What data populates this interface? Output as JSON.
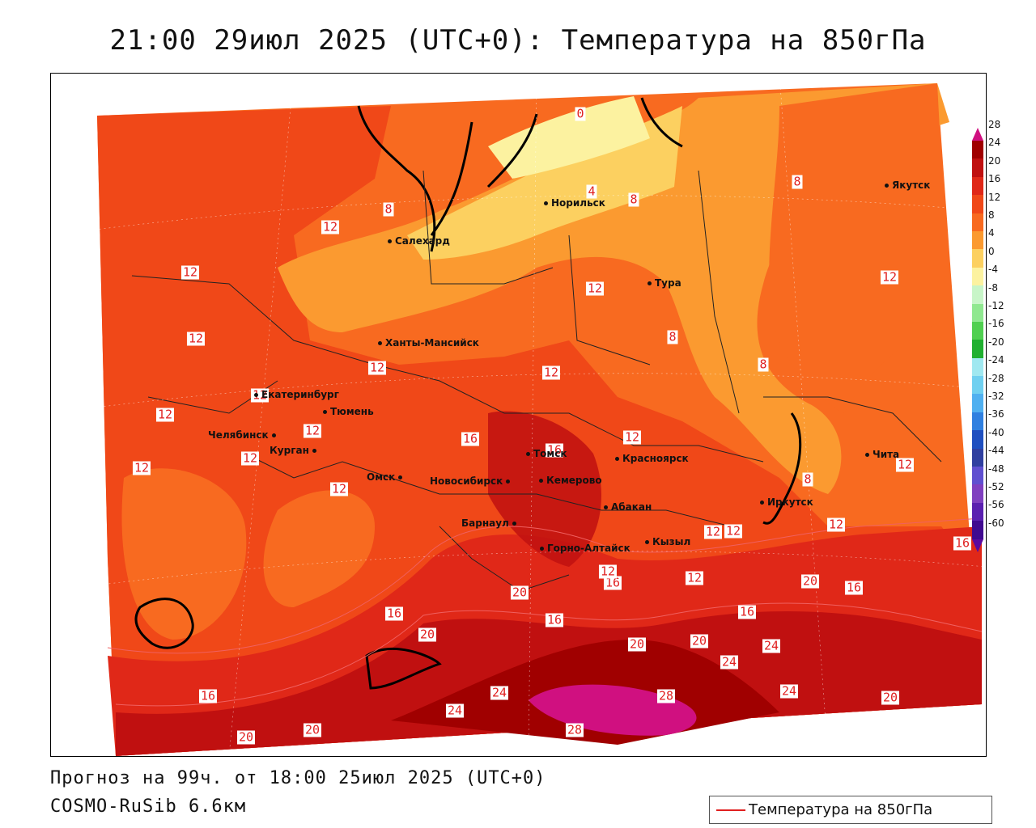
{
  "title": "21:00 29июл 2025 (UTC+0): Температура на 850гПа",
  "footer": {
    "forecast": "Прогноз на 99ч. от 18:00 25июл 2025 (UTC+0)",
    "model": "COSMO-RuSib 6.6км"
  },
  "legend": {
    "label": "Температура на 850гПа",
    "color": "#e02020"
  },
  "colorbar": {
    "labels": [
      "28",
      "24",
      "20",
      "16",
      "12",
      "8",
      "4",
      "0",
      "-4",
      "-8",
      "-12",
      "-16",
      "-20",
      "-24",
      "-28",
      "-32",
      "-36",
      "-40",
      "-44",
      "-48",
      "-52",
      "-56",
      "-60"
    ],
    "colors": [
      "#d01080",
      "#a00000",
      "#c01010",
      "#e02818",
      "#f04818",
      "#f86a20",
      "#fb9a30",
      "#fcd060",
      "#fcf2a0",
      "#c8f5c8",
      "#90e890",
      "#50d050",
      "#20b030",
      "#a0e8f0",
      "#70d0f0",
      "#50b0f0",
      "#3080e0",
      "#2050c0",
      "#3040a0",
      "#6050d0",
      "#8040c0",
      "#5a20b0",
      "#400a90",
      "#5a0aa0"
    ]
  },
  "cities": [
    {
      "name": "Якутск"
    },
    {
      "name": "Норильск"
    },
    {
      "name": "Салехард"
    },
    {
      "name": "Тура"
    },
    {
      "name": "Ханты-Мансийск"
    },
    {
      "name": "Екатеринбург"
    },
    {
      "name": "Тюмень"
    },
    {
      "name": "Челябинск"
    },
    {
      "name": "Курган"
    },
    {
      "name": "Омск"
    },
    {
      "name": "Новосибирск"
    },
    {
      "name": "Томск"
    },
    {
      "name": "Кемерово"
    },
    {
      "name": "Красноярск"
    },
    {
      "name": "Абакан"
    },
    {
      "name": "Барнаул"
    },
    {
      "name": "Горно-Алтайск"
    },
    {
      "name": "Кызыл"
    },
    {
      "name": "Иркутск"
    },
    {
      "name": "Чита"
    }
  ],
  "isotherm_labels": [
    "0",
    "4",
    "8",
    "8",
    "8",
    "12",
    "12",
    "12",
    "12",
    "12",
    "12",
    "12",
    "12",
    "12",
    "12",
    "12",
    "12",
    "12",
    "12",
    "16",
    "16",
    "16",
    "16",
    "16",
    "16",
    "16",
    "16",
    "20",
    "20",
    "20",
    "20",
    "20",
    "20",
    "20",
    "20",
    "24",
    "24",
    "24",
    "24",
    "24",
    "28",
    "28",
    "12",
    "8",
    "8",
    "8",
    "12",
    "12",
    "12",
    "12",
    "16",
    "12"
  ]
}
